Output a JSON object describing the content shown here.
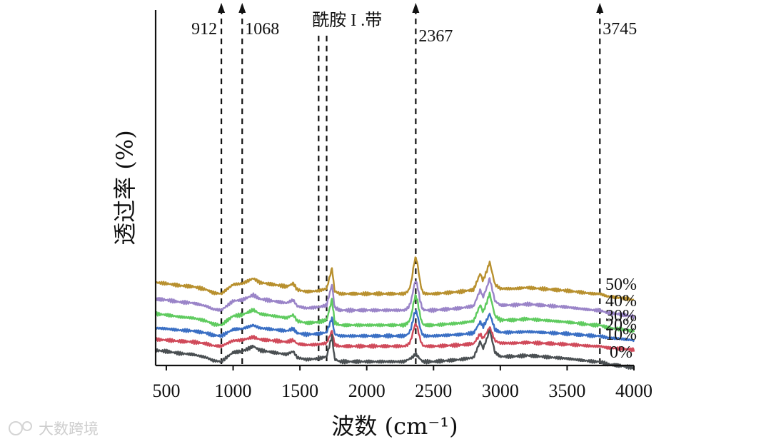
{
  "chart_data": {
    "type": "line",
    "title": "",
    "xlabel": "波数 (cm⁻¹)",
    "ylabel": "透过率 (%)",
    "xlim": [
      420,
      4000
    ],
    "x_ticks": [
      500,
      1000,
      1500,
      2000,
      2500,
      3000,
      3500,
      4000
    ],
    "y_ticks": [],
    "grid": false,
    "legend": "inline-right",
    "annotations": [
      {
        "label": "912",
        "x": 912
      },
      {
        "label": "1068",
        "x": 1068
      },
      {
        "label": "酰胺 I .带",
        "x": 1640
      },
      {
        "label": "",
        "x": 1700
      },
      {
        "label": "2367",
        "x": 2367
      },
      {
        "label": "3745",
        "x": 3745
      }
    ],
    "arrow_positions": [
      912,
      1068,
      2367,
      3745
    ],
    "base_profile": {
      "x": [
        420,
        500,
        600,
        700,
        800,
        850,
        912,
        950,
        1000,
        1068,
        1120,
        1150,
        1200,
        1300,
        1400,
        1450,
        1480,
        1550,
        1640,
        1700,
        1720,
        1740,
        1760,
        1800,
        1900,
        2000,
        2100,
        2200,
        2280,
        2340,
        2367,
        2400,
        2420,
        2500,
        2600,
        2700,
        2800,
        2850,
        2870,
        2900,
        2920,
        2960,
        3000,
        3100,
        3200,
        3300,
        3400,
        3500,
        3600,
        3700,
        3745,
        3800,
        3900,
        4000
      ],
      "y": [
        0.22,
        0.2,
        0.16,
        0.14,
        0.08,
        0.02,
        0.0,
        0.08,
        0.18,
        0.2,
        0.26,
        0.3,
        0.22,
        0.18,
        0.14,
        0.2,
        0.08,
        0.04,
        0.06,
        0.1,
        0.3,
        0.5,
        0.05,
        0.0,
        0.0,
        0.0,
        0.0,
        0.0,
        0.0,
        0.08,
        0.15,
        0.05,
        0.0,
        0.0,
        0.02,
        0.04,
        0.08,
        0.4,
        0.25,
        0.45,
        0.62,
        0.18,
        0.1,
        0.1,
        0.12,
        0.1,
        0.08,
        0.06,
        0.03,
        0.0,
        0.0,
        -0.05,
        -0.08,
        -0.12
      ]
    },
    "series": [
      {
        "name": "50%",
        "color": "#b8902e",
        "offset": 1.02,
        "amp": 1.0,
        "peak2367": 0.55
      },
      {
        "name": "40%",
        "color": "#9a84c8",
        "offset": 0.7,
        "amp": 1.0,
        "peak2367": 0.42
      },
      {
        "name": "30%",
        "color": "#5fcb5f",
        "offset": 0.41,
        "amp": 1.0,
        "peak2367": 0.42
      },
      {
        "name": "20%",
        "color": "#3a6fc4",
        "offset": 0.2,
        "amp": 0.7,
        "peak2367": 0.38
      },
      {
        "name": "10%",
        "color": "#d04a5a",
        "offset": 0.0,
        "amp": 0.6,
        "peak2367": 0.34
      },
      {
        "name": "0%",
        "color": "#4a4f52",
        "offset": -0.3,
        "amp": 1.0,
        "peak2367": 0.0
      }
    ]
  },
  "watermark": {
    "text": "大数跨境"
  }
}
